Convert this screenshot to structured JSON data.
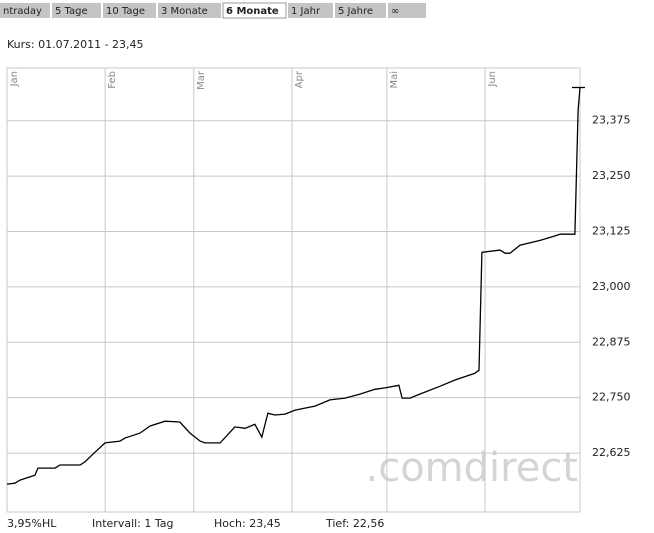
{
  "tabs": [
    "ntraday",
    "5 Tage",
    "10 Tage",
    "3 Monate",
    "6 Monate",
    "1 Jahr",
    "5 Jahre",
    "∞"
  ],
  "active_tab": 4,
  "chart_data": {
    "type": "line",
    "subtitle": "Kurs: 01.07.2011 - 23,45",
    "x": [
      0,
      2.5,
      4.1,
      8.8,
      9.8,
      15.2,
      16.7,
      23.1,
      24.6,
      27.8,
      31,
      35.7,
      37.3,
      42,
      45.2,
      49.9,
      54.6,
      57.8,
      61,
      62.5,
      67.3,
      72,
      75.2,
      78.3,
      80.5,
      82.4,
      84.6,
      87.8,
      91,
      97.3,
      102,
      106.8,
      111.5,
      116.2,
      119.4,
      123.8,
      124.8,
      127.3,
      130.4,
      136.8,
      141.5,
      147.8,
      149.1,
      150,
      155.7,
      157.3,
      158.9,
      162,
      168.4,
      173.1,
      174.7,
      179.4,
      180.4,
      181
    ],
    "values": [
      22.555,
      22.557,
      22.564,
      22.575,
      22.591,
      22.591,
      22.598,
      22.598,
      22.605,
      22.627,
      22.648,
      22.652,
      22.659,
      22.67,
      22.686,
      22.697,
      22.695,
      22.67,
      22.652,
      22.648,
      22.648,
      22.684,
      22.681,
      22.69,
      22.661,
      22.715,
      22.711,
      22.713,
      22.722,
      22.731,
      22.745,
      22.749,
      22.758,
      22.769,
      22.772,
      22.778,
      22.749,
      22.749,
      22.758,
      22.776,
      22.79,
      22.805,
      22.812,
      23.078,
      23.083,
      23.076,
      23.076,
      23.094,
      23.105,
      23.115,
      23.119,
      23.119,
      23.399,
      23.45
    ],
    "color": "#000000",
    "xlim": [
      0,
      181
    ],
    "xticks": [
      {
        "value": 0,
        "label": "Jan"
      },
      {
        "value": 31,
        "label": "Feb"
      },
      {
        "value": 59,
        "label": "Mar"
      },
      {
        "value": 90,
        "label": "Apr"
      },
      {
        "value": 120,
        "label": "Mai"
      },
      {
        "value": 151,
        "label": "Jun"
      }
    ],
    "ylim": [
      22.492,
      23.494
    ],
    "yticks": [
      {
        "value": 22.625,
        "label": "22,625"
      },
      {
        "value": 22.75,
        "label": "22,750"
      },
      {
        "value": 22.875,
        "label": "22,875"
      },
      {
        "value": 23.0,
        "label": "23,000"
      },
      {
        "value": 23.125,
        "label": "23,125"
      },
      {
        "value": 23.25,
        "label": "23,250"
      },
      {
        "value": 23.375,
        "label": "23,375"
      }
    ],
    "grid": true,
    "watermark": ".comdirect"
  },
  "footer": [
    "3,95%HL",
    "Intervall: 1 Tag",
    "Hoch: 23,45",
    "Tief: 22,56"
  ]
}
